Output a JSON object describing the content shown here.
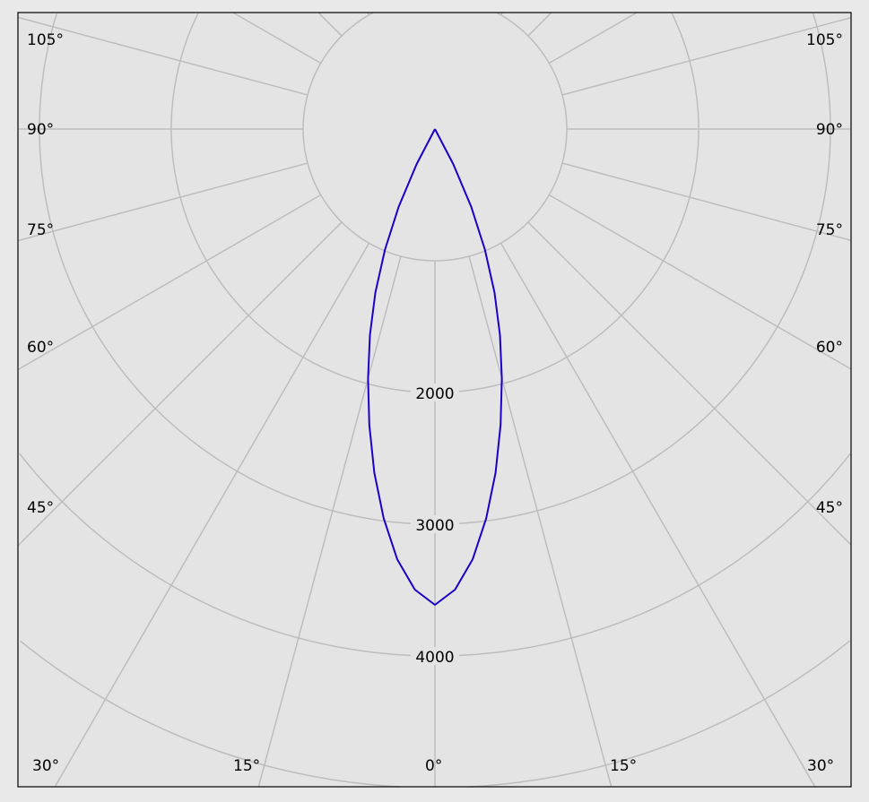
{
  "chart_data": {
    "type": "polar",
    "title": "",
    "radial_unit": "",
    "radial_ticks": [
      1000,
      2000,
      3000,
      4000,
      5000,
      6000
    ],
    "radial_tick_labels": [
      "2000",
      "3000",
      "4000"
    ],
    "angle_tick_labels": {
      "bottom": [
        "30°",
        "15°",
        "0°",
        "15°",
        "30°"
      ],
      "left": [
        "105°",
        "90°",
        "75°",
        "60°",
        "45°"
      ],
      "right": [
        "105°",
        "90°",
        "75°",
        "60°",
        "45°"
      ]
    },
    "angle_grid_step_deg": 15,
    "grid": true,
    "colors": {
      "curve": "#1a00c8",
      "grid": "#bdbdbd",
      "plot_background": "#e4e4e4",
      "frame": "#000000"
    },
    "series": [
      {
        "angles_deg": [
          0,
          2.5,
          5,
          7.5,
          10,
          12.5,
          15,
          17.5,
          20,
          22.5,
          25,
          27.5,
          30,
          45,
          60,
          75,
          90
        ],
        "values": [
          3612,
          3500,
          3280,
          2980,
          2650,
          2300,
          1960,
          1640,
          1320,
          990,
          650,
          300,
          0,
          0,
          0,
          0,
          0
        ]
      }
    ]
  }
}
